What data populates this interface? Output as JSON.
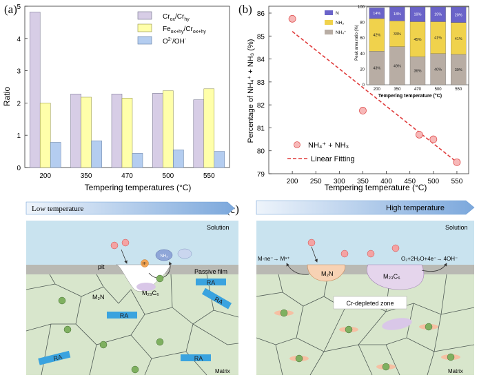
{
  "panels": {
    "a": "(a)",
    "b": "(b)",
    "c": "(c)"
  },
  "colors": {
    "cr_bar": "#d7cde6",
    "fe_bar": "#ffffaa",
    "o_bar": "#b4cdf0",
    "scatter_fill": "#f7b8b8",
    "scatter_edge": "#e05555",
    "fit_line": "#e03c3c",
    "inset_n": "#6a63c9",
    "inset_nh3": "#f0d24c",
    "inset_nh4": "#b8ada4",
    "solution": "#c9e3ef",
    "matrix": "#d8e6cc",
    "passive_film": "#b9b9b3",
    "ra_bar": "#3aa3df",
    "arrow": "#6f9fd6"
  },
  "chart_data": [
    {
      "type": "bar",
      "categories": [
        "200",
        "350",
        "470",
        "500",
        "550"
      ],
      "series": [
        {
          "name": "Cr_ox/Cr_hy",
          "values": [
            4.82,
            2.28,
            2.28,
            2.3,
            2.1
          ]
        },
        {
          "name": "Fe_ox+hy/Cr_ox+hy",
          "values": [
            2.0,
            2.18,
            2.15,
            2.38,
            2.44
          ]
        },
        {
          "name": "O²⁻/OH⁻",
          "values": [
            0.78,
            0.83,
            0.44,
            0.55,
            0.5
          ]
        }
      ],
      "legend_parts": [
        {
          "main": "Cr",
          "sub1": "ox",
          "mid": "/Cr",
          "sub2": "hy",
          "sup": ""
        },
        {
          "main": "Fe",
          "sub1": "ox+hy",
          "mid": "/Cr",
          "sub2": "ox+hy",
          "sup": ""
        },
        {
          "main": "O",
          "sub1": "",
          "mid": "/OH",
          "sub2": "",
          "sup": "2-",
          "sup2": "-"
        }
      ],
      "xlabel": "Tempering temperatures (°C)",
      "ylabel": "Ratio",
      "ylim": [
        0,
        5
      ],
      "yticks": [
        "0",
        "1",
        "2",
        "3",
        "4",
        "5"
      ],
      "legend_position": "top-right"
    },
    {
      "type": "scatter",
      "x": [
        200,
        350,
        470,
        500,
        550
      ],
      "y": [
        85.75,
        81.75,
        80.7,
        80.5,
        79.5
      ],
      "fit": {
        "x": [
          200,
          550
        ],
        "y": [
          85.2,
          79.5
        ]
      },
      "xlabel": "Tempering temperature (°C)",
      "ylabel": "Percentage of NH₄⁺ + NH₃ (%)",
      "xlim": [
        150,
        575
      ],
      "ylim": [
        79,
        86.3
      ],
      "xticks": [
        "200",
        "250",
        "300",
        "350",
        "400",
        "450",
        "500",
        "550"
      ],
      "yticks": [
        "79",
        "80",
        "81",
        "82",
        "83",
        "84",
        "85",
        "86"
      ],
      "legend": [
        "NH₄⁺ + NH₃",
        "Linear Fitting"
      ],
      "legend_position": "bottom-left"
    },
    {
      "type": "bar",
      "stacked": true,
      "categories": [
        "200",
        "350",
        "470",
        "500",
        "550"
      ],
      "series": [
        {
          "name": "NH₄⁺",
          "values": [
            43,
            49,
            36,
            40,
            39
          ]
        },
        {
          "name": "NH₃",
          "values": [
            42,
            33,
            45,
            41,
            41
          ]
        },
        {
          "name": "N",
          "values": [
            14,
            18,
            19,
            19,
            20
          ]
        }
      ],
      "labels": {
        "nh4": [
          "43%",
          "49%",
          "36%",
          "40%",
          "39%"
        ],
        "nh3": [
          "42%",
          "33%",
          "45%",
          "41%",
          "41%"
        ],
        "n": [
          "14%",
          "18%",
          "19%",
          "19%",
          "20%"
        ]
      },
      "xlabel": "Tempering temperature (°C)",
      "ylabel": "Peak area ratio (%)",
      "ylim": [
        0,
        100
      ],
      "yticks": [
        "0",
        "20",
        "40",
        "60",
        "80",
        "100"
      ],
      "legend_position": "top-left"
    }
  ],
  "schematic": {
    "low_temperature": "Low temperature",
    "high_temperature": "High temperature",
    "solution": "Solution",
    "passive_film": "Passive film",
    "matrix": "Matrix",
    "pit": "pit",
    "m2n": "M₂N",
    "m23c6": "M₂₃C₆",
    "ra": "RA",
    "n": "N",
    "cl": "Cl",
    "h": "H⁺",
    "nh3": "NH₃",
    "reaction1": "M-ne⁻→ Mⁿ⁺",
    "reaction2": "O₂+2H₂O+4e⁻→ 4OH⁻",
    "cr_depleted": "Cr-depleted zone"
  }
}
